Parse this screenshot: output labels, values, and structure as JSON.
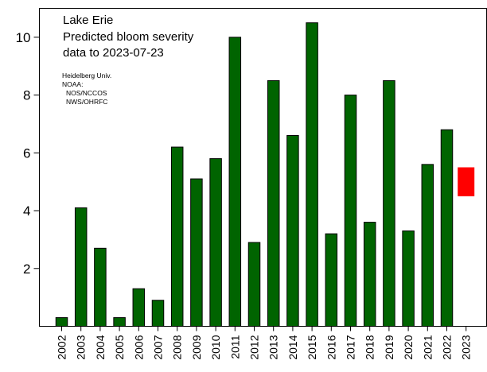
{
  "chart_data": {
    "type": "bar",
    "title_lines": [
      "Lake Erie",
      "Predicted bloom severity",
      "data to 2023-07-23"
    ],
    "credits": [
      "Heidelberg Univ.",
      "NOAA:",
      "NOS/NCCOS",
      "NWS/OHRFC"
    ],
    "categories": [
      "2002",
      "2003",
      "2004",
      "2005",
      "2006",
      "2007",
      "2008",
      "2009",
      "2010",
      "2011",
      "2012",
      "2013",
      "2014",
      "2015",
      "2016",
      "2017",
      "2018",
      "2019",
      "2020",
      "2021",
      "2022",
      "2023"
    ],
    "values": [
      0.3,
      4.1,
      2.7,
      0.3,
      1.3,
      0.9,
      6.2,
      5.1,
      5.8,
      10.0,
      2.9,
      8.5,
      6.6,
      10.5,
      3.2,
      8.0,
      3.6,
      8.5,
      3.3,
      5.6,
      6.8,
      null
    ],
    "forecast": {
      "category": "2023",
      "low": 4.5,
      "high": 5.5
    },
    "yticks": [
      2,
      4,
      6,
      8,
      10
    ],
    "ylim": [
      0,
      11
    ],
    "colors": {
      "bar": "#006400",
      "forecast": "#ff0000"
    },
    "xlabel": "",
    "ylabel": ""
  }
}
